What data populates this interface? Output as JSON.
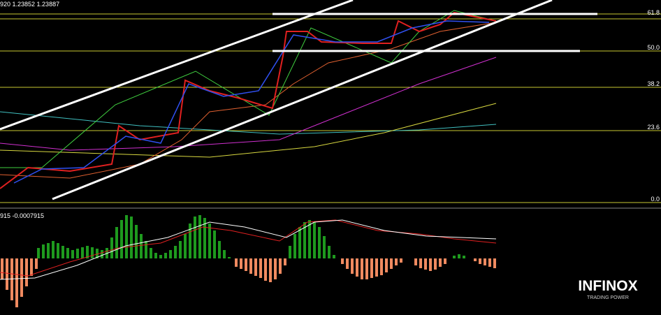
{
  "header": {
    "text": "920 1.23852 1.23887"
  },
  "fib_levels": [
    "61.8",
    "50.0",
    "38.2",
    "23.6",
    "0.0"
  ],
  "indicator": {
    "text": "915 -0.0007915"
  },
  "logo": {
    "name": "INFINOX",
    "tagline": "TRADING POWER"
  }
}
